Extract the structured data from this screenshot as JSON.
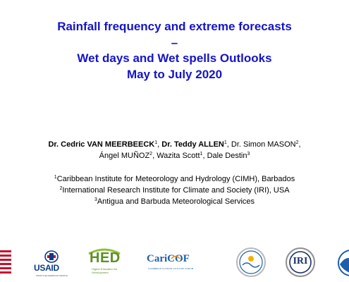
{
  "title": {
    "line1": "Rainfall frequency and extreme forecasts",
    "line2": "–",
    "line3": "Wet days and Wet spells Outlooks",
    "line4": "May to July 2020"
  },
  "authors": [
    {
      "name": "Dr. Cedric VAN MEERBEECK",
      "sup": "1",
      "bold": true
    },
    {
      "name": "Dr. Teddy ALLEN",
      "sup": "1",
      "bold": true
    },
    {
      "name": "Dr. Simon MASON",
      "sup": "2",
      "bold": false
    },
    {
      "name": "Ángel MUÑOZ",
      "sup": "2",
      "bold": false
    },
    {
      "name": "Wazita Scott",
      "sup": "1",
      "bold": false
    },
    {
      "name": "Dale Destin",
      "sup": "3",
      "bold": false
    }
  ],
  "affiliations": [
    {
      "sup": "1",
      "text": "Caribbean Institute for Meteorology and Hydrology (CIMH), Barbados"
    },
    {
      "sup": "2",
      "text": "International Research Institute for Climate and Society (IRI), USA"
    },
    {
      "sup": "3",
      "text": "Antigua and Barbuda Meteorological Services"
    }
  ],
  "logos": {
    "usaid": {
      "name": "USAID",
      "tagline": "FROM THE AMERICAN PEOPLE",
      "icon": "usaid-seal-icon"
    },
    "hed": {
      "name": "HED",
      "tagline": "Higher Education for Development",
      "icon": "hed-logo-icon"
    },
    "caricof": {
      "name": "CariCOF",
      "tagline": "CARIBBEAN CLIMATE OUTLOOK FORUM",
      "icon": "caricof-logo-icon"
    },
    "cimh": {
      "icon": "cimh-seal-icon"
    },
    "iri": {
      "name": "IRI",
      "icon": "iri-seal-icon"
    },
    "flag": {
      "icon": "us-flag-icon"
    },
    "noaa": {
      "icon": "noaa-seal-icon"
    }
  }
}
